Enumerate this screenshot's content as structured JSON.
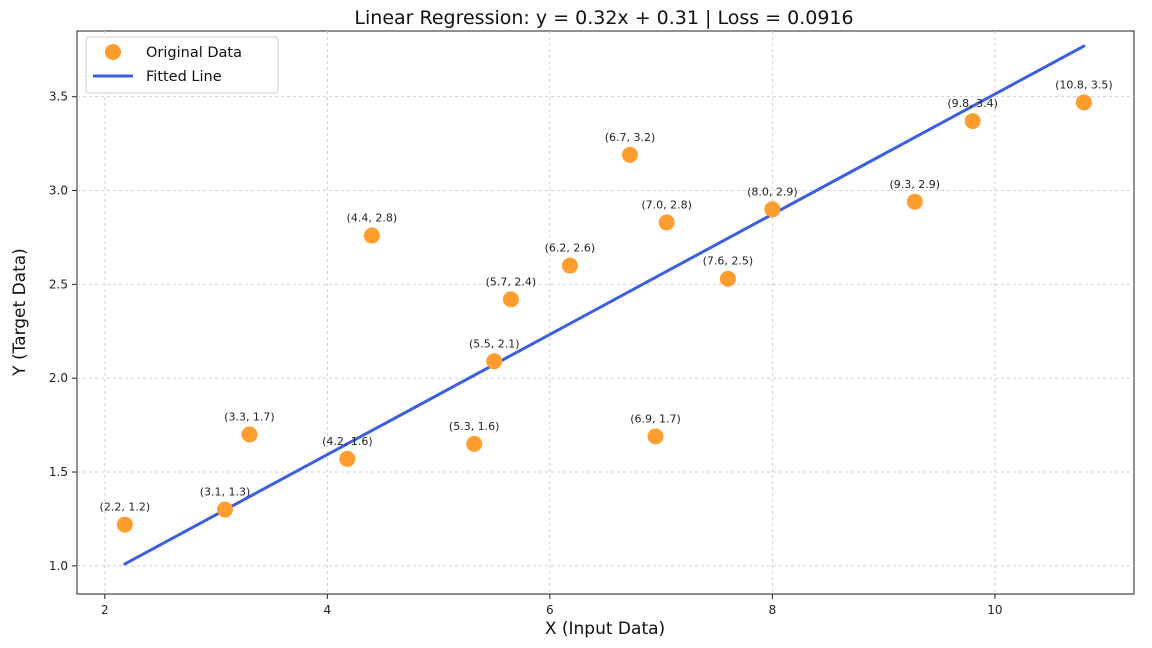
{
  "chart_data": {
    "type": "scatter",
    "title": "Linear Regression: y = 0.32x + 0.31 | Loss = 0.0916",
    "xlabel": "X (Input Data)",
    "ylabel": "Y (Target Data)",
    "xlim": [
      1.75,
      11.25
    ],
    "ylim": [
      0.85,
      3.85
    ],
    "xticks": [
      2,
      4,
      6,
      8,
      10
    ],
    "yticks": [
      1.0,
      1.5,
      2.0,
      2.5,
      3.0,
      3.5
    ],
    "xtick_labels": [
      "2",
      "4",
      "6",
      "8",
      "10"
    ],
    "ytick_labels": [
      "1.0",
      "1.5",
      "2.0",
      "2.5",
      "3.0",
      "3.5"
    ],
    "grid": true,
    "legend_position": "top-left",
    "series": [
      {
        "name": "Original Data",
        "kind": "scatter",
        "color": "#ff9d2e",
        "x": [
          2.18,
          3.08,
          3.3,
          4.18,
          4.4,
          5.32,
          5.5,
          5.65,
          6.18,
          6.72,
          6.95,
          7.05,
          7.6,
          8.0,
          9.28,
          9.8,
          10.8
        ],
        "y": [
          1.22,
          1.3,
          1.7,
          1.57,
          2.76,
          1.65,
          2.09,
          2.42,
          2.6,
          3.19,
          1.69,
          2.83,
          2.53,
          2.9,
          2.94,
          3.37,
          3.47
        ],
        "labels": [
          "(2.2, 1.2)",
          "(3.1, 1.3)",
          "(3.3, 1.7)",
          "(4.2, 1.6)",
          "(4.4, 2.8)",
          "(5.3, 1.6)",
          "(5.5, 2.1)",
          "(5.7, 2.4)",
          "(6.2, 2.6)",
          "(6.7, 3.2)",
          "(6.9, 1.7)",
          "(7.0, 2.8)",
          "(7.6, 2.5)",
          "(8.0, 2.9)",
          "(9.3, 2.9)",
          "(9.8, 3.4)",
          "(10.8, 3.5)"
        ]
      },
      {
        "name": "Fitted Line",
        "kind": "line",
        "color": "#3b5fe0",
        "x": [
          2.18,
          10.8
        ],
        "y": [
          1.01,
          3.77
        ]
      }
    ]
  }
}
